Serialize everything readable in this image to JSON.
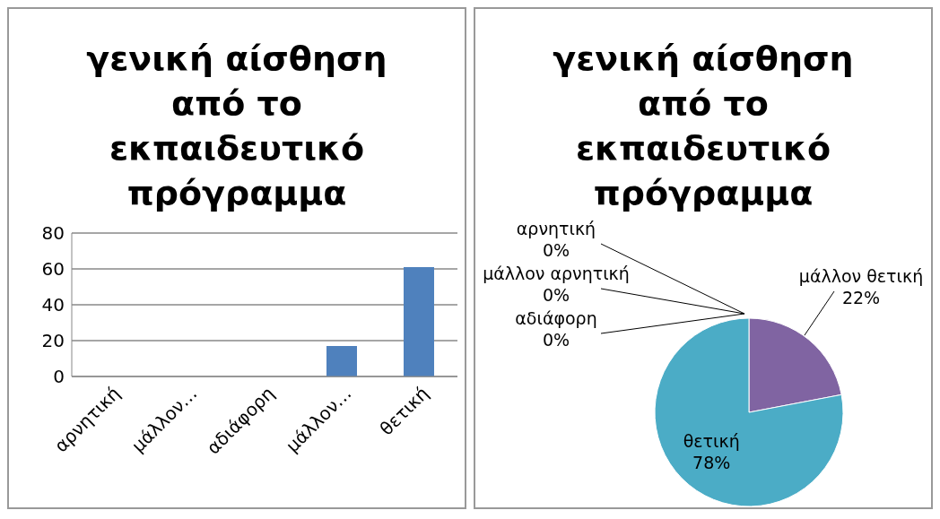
{
  "chart_data": [
    {
      "type": "bar",
      "title": "γενική αίσθηση από το εκπαιδευτικό πρόγραμμα",
      "categories": [
        "αρνητική",
        "μάλλον…",
        "αδιάφορη",
        "μάλλον…",
        "θετική"
      ],
      "values": [
        0,
        0,
        0,
        17,
        61
      ],
      "color": "#4f81bd",
      "ylim": [
        0,
        80
      ],
      "yticks": [
        0,
        20,
        40,
        60,
        80
      ],
      "grid": "y"
    },
    {
      "type": "pie",
      "title": "γενική αίσθηση από το εκπαιδευτικό πρόγραμμα",
      "categories": [
        "αρνητική",
        "μάλλον αρνητική",
        "αδιάφορη",
        "μάλλον θετική",
        "θετική"
      ],
      "values": [
        0,
        0,
        0,
        22,
        78
      ],
      "colors": [
        "#4f81bd",
        "#c0504d",
        "#9bbb59",
        "#8064a2",
        "#4bacc6"
      ],
      "value_labels": [
        "0%",
        "0%",
        "0%",
        "22%",
        "78%"
      ]
    }
  ]
}
